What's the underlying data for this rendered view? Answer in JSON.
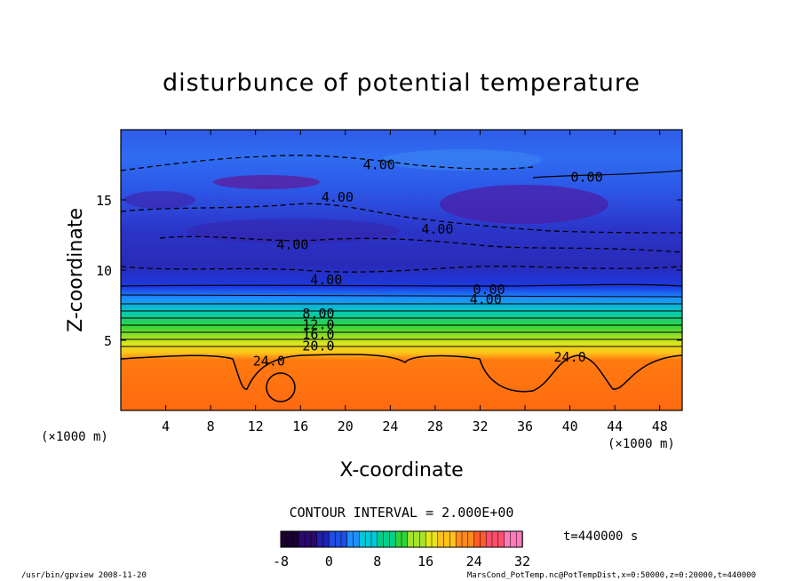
{
  "chart_data": {
    "type": "heatmap",
    "title": "disturbunce of potential temperature",
    "xlabel": "X-coordinate",
    "ylabel": "Z-coordinate",
    "x_unit": "(×1000 m)",
    "z_unit": "(×1000 m)",
    "xlim": [
      0,
      50
    ],
    "zlim": [
      0,
      20
    ],
    "x_ticks": [
      "4",
      "8",
      "12",
      "16",
      "20",
      "24",
      "28",
      "32",
      "36",
      "40",
      "44",
      "48"
    ],
    "z_ticks": [
      "5",
      "10",
      "15"
    ],
    "contour_labels": [
      {
        "text": "4.00",
        "x": 23,
        "z": 17.5
      },
      {
        "text": "0.00",
        "x": 41.5,
        "z": 16.6
      },
      {
        "text": "4.00",
        "x": 19.3,
        "z": 15.2
      },
      {
        "text": "4.00",
        "x": 28.2,
        "z": 12.9
      },
      {
        "text": "4.00",
        "x": 15.3,
        "z": 11.8
      },
      {
        "text": "4.00",
        "x": 18.3,
        "z": 9.3
      },
      {
        "text": "0.00",
        "x": 32.8,
        "z": 8.6
      },
      {
        "text": "4.00",
        "x": 32.5,
        "z": 7.9
      },
      {
        "text": "8.00",
        "x": 17.6,
        "z": 6.9
      },
      {
        "text": "12.0",
        "x": 17.6,
        "z": 6.1
      },
      {
        "text": "16.0",
        "x": 17.6,
        "z": 5.4
      },
      {
        "text": "20.0",
        "x": 17.6,
        "z": 4.6
      },
      {
        "text": "24.0",
        "x": 13.2,
        "z": 3.5
      },
      {
        "text": "24.0",
        "x": 40.0,
        "z": 3.8
      }
    ],
    "contour_interval_text": "CONTOUR INTERVAL = 2.000E+00",
    "colorbar": {
      "range": [
        -8,
        32
      ],
      "tick_labels": [
        "-8",
        "0",
        "8",
        "16",
        "24",
        "32"
      ],
      "colors": [
        "#1a0033",
        "#2a0a6e",
        "#1f1fb0",
        "#1e4fe0",
        "#1e90ff",
        "#00c8d8",
        "#00d08a",
        "#2fd33a",
        "#a6e22a",
        "#e6e619",
        "#ffc21a",
        "#ff8a1a",
        "#ff5a2a",
        "#ff4e6a",
        "#ff7ab8"
      ]
    },
    "time_text": "t=440000 s",
    "grid": false
  },
  "footer": {
    "left": "/usr/bin/gpview   2008-11-20",
    "right": "MarsCond_PotTemp.nc@PotTempDist,x=0:50000,z=0:20000,t=440000"
  }
}
